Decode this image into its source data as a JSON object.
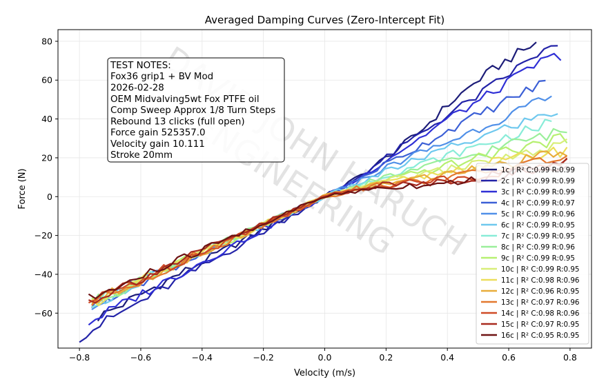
{
  "chart_data": {
    "type": "line",
    "title": "Averaged Damping Curves (Zero-Intercept Fit)",
    "xlabel": "Velocity (m/s)",
    "ylabel": "Force (N)",
    "xlim": [
      -0.87,
      0.87
    ],
    "ylim": [
      -78,
      86
    ],
    "xticks": [
      -0.8,
      -0.6,
      -0.4,
      -0.2,
      0.0,
      0.2,
      0.4,
      0.6,
      0.8
    ],
    "xtick_labels": [
      "−0.8",
      "−0.6",
      "−0.4",
      "−0.2",
      "0.0",
      "0.2",
      "0.4",
      "0.6",
      "0.8"
    ],
    "yticks": [
      -60,
      -40,
      -20,
      0,
      20,
      40,
      60,
      80
    ],
    "ytick_labels": [
      "−60",
      "−40",
      "−20",
      "0",
      "20",
      "40",
      "60",
      "80"
    ],
    "grid": true,
    "legend_position": "lower-right",
    "notes": {
      "lines": [
        "TEST NOTES:",
        "Fox36 grip1 + BV Mod",
        "2026-02-28",
        "OEM Midvalving5wt Fox PTFE oil",
        "Comp Sweep Approx 1/8 Turn Steps",
        "Rebound 13 clicks (full open)",
        "Force gain 525357.0",
        "Velocity gain 10.111",
        "Stroke 20mm"
      ]
    },
    "watermark": [
      "DAVID JOHN HARUCH",
      "ENGINEERING"
    ],
    "series": [
      {
        "name": "1c | R² C:0.99 R:0.99",
        "color": "#1c1c78",
        "x_min": -0.74,
        "x_max": 0.69,
        "neg_slope": 84,
        "pos_points": [
          [
            0.0,
            0
          ],
          [
            0.1,
            9
          ],
          [
            0.2,
            20
          ],
          [
            0.3,
            32
          ],
          [
            0.4,
            47
          ],
          [
            0.5,
            60
          ],
          [
            0.6,
            71
          ],
          [
            0.69,
            79
          ]
        ]
      },
      {
        "name": "2c | R² C:0.99 R:0.99",
        "color": "#2323a8",
        "x_min": -0.8,
        "x_max": 0.76,
        "neg_slope": 90,
        "pos_points": [
          [
            0.0,
            0
          ],
          [
            0.1,
            9
          ],
          [
            0.2,
            20
          ],
          [
            0.3,
            31
          ],
          [
            0.4,
            42
          ],
          [
            0.5,
            52
          ],
          [
            0.6,
            63
          ],
          [
            0.7,
            74
          ],
          [
            0.76,
            77
          ]
        ]
      },
      {
        "name": "3c | R² C:0.99 R:0.99",
        "color": "#2f2fd6",
        "x_min": -0.77,
        "x_max": 0.77,
        "neg_slope": 84,
        "pos_points": [
          [
            0.0,
            0
          ],
          [
            0.1,
            8
          ],
          [
            0.2,
            19
          ],
          [
            0.3,
            29
          ],
          [
            0.4,
            40
          ],
          [
            0.5,
            49
          ],
          [
            0.6,
            59
          ],
          [
            0.7,
            69
          ],
          [
            0.77,
            73
          ]
        ]
      },
      {
        "name": "4c | R² C:0.99 R:0.97",
        "color": "#3b5fd6",
        "x_min": -0.76,
        "x_max": 0.72,
        "neg_slope": 73,
        "pos_points": [
          [
            0.0,
            0
          ],
          [
            0.1,
            8
          ],
          [
            0.2,
            17
          ],
          [
            0.3,
            25
          ],
          [
            0.4,
            34
          ],
          [
            0.5,
            42
          ],
          [
            0.6,
            50
          ],
          [
            0.72,
            59
          ]
        ]
      },
      {
        "name": "5c | R² C:0.99 R:0.96",
        "color": "#4f8fe8",
        "x_min": -0.76,
        "x_max": 0.74,
        "neg_slope": 73,
        "pos_points": [
          [
            0.0,
            0
          ],
          [
            0.1,
            7
          ],
          [
            0.2,
            15
          ],
          [
            0.3,
            22
          ],
          [
            0.4,
            28
          ],
          [
            0.5,
            35
          ],
          [
            0.6,
            42
          ],
          [
            0.74,
            51
          ]
        ]
      },
      {
        "name": "6c | R² C:0.99 R:0.95",
        "color": "#6ec8ee",
        "x_min": -0.76,
        "x_max": 0.76,
        "neg_slope": 73,
        "pos_points": [
          [
            0.0,
            0
          ],
          [
            0.1,
            6
          ],
          [
            0.2,
            13
          ],
          [
            0.3,
            19
          ],
          [
            0.4,
            25
          ],
          [
            0.5,
            30
          ],
          [
            0.6,
            36
          ],
          [
            0.76,
            44
          ]
        ]
      },
      {
        "name": "7c | R² C:0.99 R:0.95",
        "color": "#88ecd8",
        "x_min": -0.76,
        "x_max": 0.74,
        "neg_slope": 72,
        "pos_points": [
          [
            0.0,
            0
          ],
          [
            0.1,
            5
          ],
          [
            0.2,
            11
          ],
          [
            0.3,
            16
          ],
          [
            0.4,
            21
          ],
          [
            0.5,
            26
          ],
          [
            0.6,
            31
          ],
          [
            0.74,
            38
          ]
        ]
      },
      {
        "name": "8c | R² C:0.99 R:0.96",
        "color": "#9aef9a",
        "x_min": -0.76,
        "x_max": 0.79,
        "neg_slope": 72,
        "pos_points": [
          [
            0.0,
            0
          ],
          [
            0.1,
            5
          ],
          [
            0.2,
            10
          ],
          [
            0.3,
            14
          ],
          [
            0.4,
            18
          ],
          [
            0.5,
            22
          ],
          [
            0.6,
            27
          ],
          [
            0.79,
            34
          ]
        ]
      },
      {
        "name": "9c | R² C:0.99 R:0.95",
        "color": "#b6f070",
        "x_min": -0.76,
        "x_max": 0.79,
        "neg_slope": 72,
        "pos_points": [
          [
            0.0,
            0
          ],
          [
            0.1,
            4
          ],
          [
            0.2,
            8
          ],
          [
            0.3,
            12
          ],
          [
            0.4,
            16
          ],
          [
            0.5,
            20
          ],
          [
            0.6,
            24
          ],
          [
            0.79,
            30
          ]
        ]
      },
      {
        "name": "10c | R² C:0.99 R:0.95",
        "color": "#d8ee78",
        "x_min": -0.76,
        "x_max": 0.79,
        "neg_slope": 72,
        "pos_points": [
          [
            0.0,
            0
          ],
          [
            0.1,
            4
          ],
          [
            0.2,
            8
          ],
          [
            0.3,
            11
          ],
          [
            0.4,
            14
          ],
          [
            0.5,
            17
          ],
          [
            0.6,
            20
          ],
          [
            0.79,
            27
          ]
        ]
      },
      {
        "name": "11c | R² C:0.98 R:0.96",
        "color": "#ecde5a",
        "x_min": -0.76,
        "x_max": 0.79,
        "neg_slope": 72,
        "pos_points": [
          [
            0.0,
            0
          ],
          [
            0.1,
            4
          ],
          [
            0.2,
            7
          ],
          [
            0.3,
            10
          ],
          [
            0.4,
            13
          ],
          [
            0.5,
            16
          ],
          [
            0.6,
            19
          ],
          [
            0.79,
            24
          ]
        ]
      },
      {
        "name": "12c | R² C:0.96 R:0.95",
        "color": "#e8ac3a",
        "x_min": -0.76,
        "x_max": 0.79,
        "neg_slope": 72,
        "pos_points": [
          [
            0.0,
            0
          ],
          [
            0.1,
            4
          ],
          [
            0.2,
            7
          ],
          [
            0.3,
            9
          ],
          [
            0.4,
            12
          ],
          [
            0.5,
            14
          ],
          [
            0.6,
            17
          ],
          [
            0.79,
            23
          ]
        ]
      },
      {
        "name": "13c | R² C:0.97 R:0.96",
        "color": "#e3782e",
        "x_min": -0.76,
        "x_max": 0.79,
        "neg_slope": 72,
        "pos_points": [
          [
            0.0,
            0
          ],
          [
            0.1,
            4
          ],
          [
            0.2,
            6
          ],
          [
            0.3,
            8
          ],
          [
            0.4,
            10
          ],
          [
            0.5,
            12
          ],
          [
            0.6,
            15
          ],
          [
            0.79,
            21
          ]
        ]
      },
      {
        "name": "14c | R² C:0.98 R:0.96",
        "color": "#cf4a26",
        "x_min": -0.77,
        "x_max": 0.79,
        "neg_slope": 71,
        "pos_points": [
          [
            0.0,
            0
          ],
          [
            0.1,
            4
          ],
          [
            0.2,
            6
          ],
          [
            0.3,
            8
          ],
          [
            0.4,
            9
          ],
          [
            0.5,
            11
          ],
          [
            0.6,
            13
          ],
          [
            0.79,
            19
          ]
        ]
      },
      {
        "name": "15c | R² C:0.97 R:0.95",
        "color": "#a82a1e",
        "x_min": -0.77,
        "x_max": 0.79,
        "neg_slope": 70,
        "pos_points": [
          [
            0.0,
            0
          ],
          [
            0.1,
            4
          ],
          [
            0.2,
            6
          ],
          [
            0.3,
            7
          ],
          [
            0.4,
            8
          ],
          [
            0.5,
            10
          ],
          [
            0.6,
            12
          ],
          [
            0.79,
            18
          ]
        ]
      },
      {
        "name": "16c | R² C:0.95 R:0.95",
        "color": "#6e1212",
        "x_min": -0.77,
        "x_max": 0.79,
        "neg_slope": 69,
        "pos_points": [
          [
            0.0,
            0
          ],
          [
            0.1,
            3
          ],
          [
            0.2,
            5
          ],
          [
            0.3,
            6
          ],
          [
            0.4,
            7
          ],
          [
            0.5,
            9
          ],
          [
            0.6,
            11
          ],
          [
            0.79,
            17
          ]
        ]
      }
    ]
  }
}
